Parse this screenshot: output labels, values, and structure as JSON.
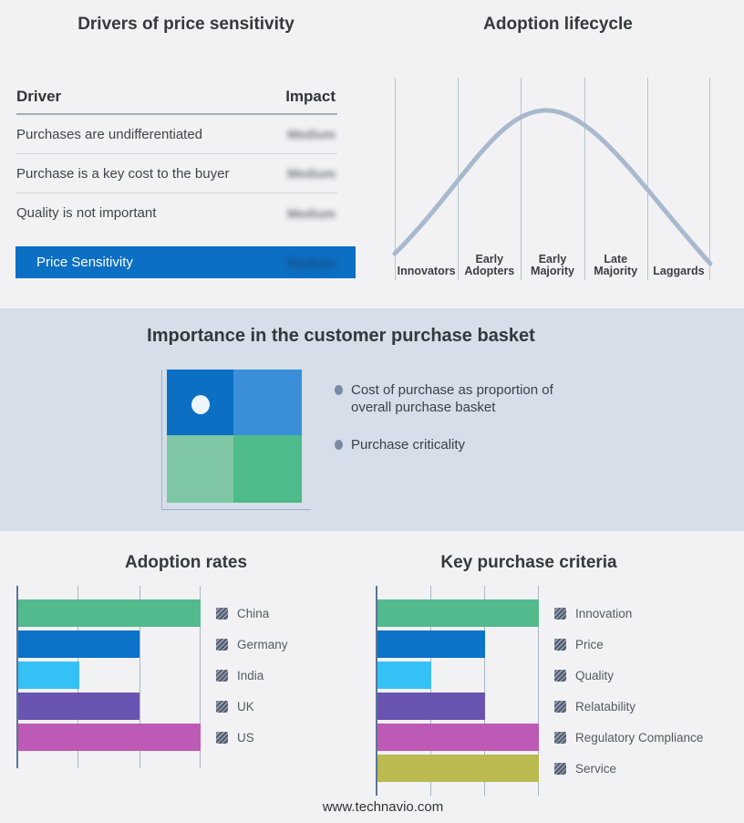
{
  "page": {
    "background_color": "#f2f2f4",
    "band_color": "#d5dee9",
    "footer_text": "www.technavio.com"
  },
  "drivers_panel": {
    "title": "Drivers of price sensitivity",
    "columns": {
      "driver": "Driver",
      "impact": "Impact"
    },
    "rows": [
      {
        "driver": "Purchases are undifferentiated",
        "impact": "Medium"
      },
      {
        "driver": "Purchase is a key cost to the buyer",
        "impact": "Medium"
      },
      {
        "driver": "Quality is not important",
        "impact": "Medium"
      }
    ],
    "highlight_row": {
      "driver": "Price Sensitivity",
      "impact": "Medium"
    },
    "highlight_color": "#0b6fc3",
    "impact_blurred": true
  },
  "purchase_basket": {
    "title": "Importance in the customer purchase basket",
    "bullets": [
      "Cost of purchase as proportion of overall purchase basket",
      "Purchase criticality"
    ],
    "quadrant_colors": [
      "#0b6fc4",
      "#3b8fd8",
      "#7fc7a4",
      "#4fbb8a"
    ],
    "marker_color": "#eef6fc",
    "marker_quadrant": "top_left"
  },
  "chart_data": [
    {
      "type": "line",
      "title": "Adoption lifecycle",
      "categories": [
        "Innovators",
        "Early Adopters",
        "Early Majority",
        "Late Majority",
        "Laggards"
      ],
      "shape": "bell curve rising from Innovators, peaking at the Early Adopters / Early Majority boundary, falling to Laggards",
      "line_color": "#a9b9cd",
      "grid": true,
      "legend_position": "none"
    },
    {
      "type": "bar",
      "title": "Adoption rates",
      "orientation": "horizontal",
      "categories": [
        "China",
        "Germany",
        "India",
        "UK",
        "US"
      ],
      "values": [
        3,
        2,
        1,
        2,
        3
      ],
      "xlim": [
        0,
        3
      ],
      "colors": [
        "#52ba8c",
        "#0b73c8",
        "#35c1f5",
        "#6a54b1",
        "#bd5ab5"
      ],
      "grid": true,
      "legend_position": "right"
    },
    {
      "type": "bar",
      "title": "Key purchase criteria",
      "orientation": "horizontal",
      "categories": [
        "Innovation",
        "Price",
        "Quality",
        "Relatability",
        "Regulatory Compliance",
        "Service"
      ],
      "values": [
        3,
        2,
        1,
        2,
        3,
        3
      ],
      "xlim": [
        0,
        3
      ],
      "colors": [
        "#52ba8c",
        "#0b73c8",
        "#35c1f5",
        "#6a54b1",
        "#bd5ab5",
        "#b9ba50"
      ],
      "grid": true,
      "legend_position": "right"
    }
  ]
}
